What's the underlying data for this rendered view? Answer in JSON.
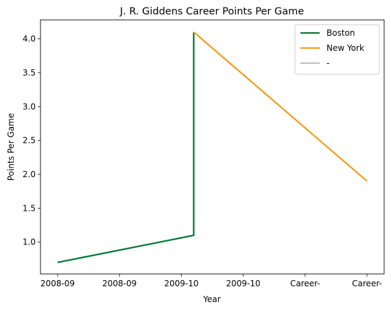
{
  "chart_data": {
    "type": "line",
    "title": "J. R. Giddens Career Points Per Game",
    "xlabel": "Year",
    "ylabel": "Points Per Game",
    "categories": [
      "2008-09",
      "2008-09",
      "2009-10",
      "2009-10",
      "Career-",
      "Career-"
    ],
    "ylim": [
      0.53,
      4.28
    ],
    "yticks": [
      1.0,
      1.5,
      2.0,
      2.5,
      3.0,
      3.5,
      4.0
    ],
    "ytick_labels": [
      "1.0",
      "1.5",
      "2.0",
      "2.5",
      "3.0",
      "3.5",
      "4.0"
    ],
    "grid": false,
    "legend_position": "top-right",
    "series": [
      {
        "name": "Boston",
        "color": "#007a33",
        "points": [
          [
            0,
            0.7
          ],
          [
            2.2,
            1.1
          ],
          [
            2.2,
            4.1
          ]
        ]
      },
      {
        "name": "New York",
        "color": "#f59d1c",
        "points": [
          [
            2.2,
            4.1
          ],
          [
            5,
            1.9
          ]
        ]
      },
      {
        "name": "-",
        "color": "#c0c0c0",
        "points": []
      }
    ]
  }
}
